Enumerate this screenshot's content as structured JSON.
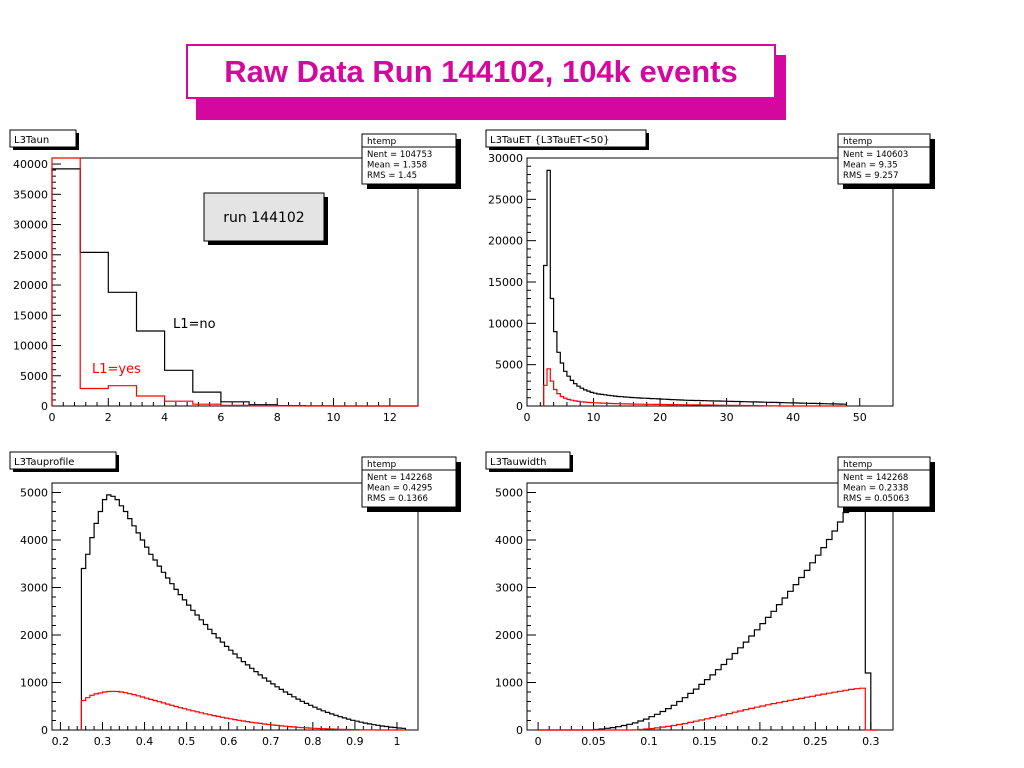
{
  "title": "Raw Data Run 144102, 104k events",
  "colors": {
    "title": "#d4089e",
    "series_no": "#000000",
    "series_yes": "#ff0000"
  },
  "chart_data": [
    {
      "type": "histogram",
      "name": "L3Taun",
      "xlim": [
        0,
        13
      ],
      "ylim": [
        0,
        41000
      ],
      "xticks": [
        0,
        2,
        4,
        6,
        8,
        10,
        12
      ],
      "yticks": [
        0,
        5000,
        10000,
        15000,
        20000,
        25000,
        30000,
        35000,
        40000
      ],
      "stats": {
        "title": "htemp",
        "rows": [
          "Nent = 104753",
          "Mean  = 1.358",
          "RMS   =  1.45"
        ]
      },
      "annotations": [
        {
          "text": "run 144102",
          "boxed": true
        },
        {
          "text": "L1=no",
          "series": "L1=no"
        },
        {
          "text": "L1=yes",
          "series": "L1=yes"
        }
      ],
      "bin_edges": [
        0,
        1,
        2,
        3,
        4,
        5,
        6,
        7,
        8,
        9,
        10,
        11,
        12,
        13
      ],
      "series": [
        {
          "name": "L1=no",
          "color": "#000000",
          "values": [
            39200,
            25400,
            18800,
            12400,
            5900,
            2300,
            700,
            220,
            60,
            20,
            8,
            3,
            1
          ]
        },
        {
          "name": "L1=yes",
          "color": "#ff0000",
          "values": [
            41000,
            2900,
            3350,
            1650,
            800,
            300,
            100,
            30,
            10,
            3,
            1,
            0,
            0
          ]
        }
      ]
    },
    {
      "type": "histogram",
      "name": "L3TauET {L3TauET<50}",
      "xlim": [
        0,
        55
      ],
      "ylim": [
        0,
        30000
      ],
      "xticks": [
        0,
        10,
        20,
        30,
        40,
        50
      ],
      "yticks": [
        0,
        5000,
        10000,
        15000,
        20000,
        25000,
        30000
      ],
      "stats": {
        "title": "htemp",
        "rows": [
          "Nent = 140603",
          "Mean  =   9.35",
          "RMS   =  9.257"
        ]
      },
      "bin_start": 2.5,
      "bin_width": 0.5,
      "series": [
        {
          "name": "L1=no",
          "color": "#000000",
          "values": [
            17000,
            28500,
            13000,
            9000,
            6500,
            5200,
            4200,
            3600,
            3100,
            2700,
            2400,
            2150,
            1950,
            1800,
            1650,
            1550,
            1450,
            1400,
            1350,
            1300,
            1250,
            1200,
            1150,
            1120,
            1090,
            1060,
            1030,
            1000,
            980,
            960,
            940,
            920,
            900,
            880,
            860,
            840,
            820,
            800,
            780,
            760,
            740,
            720,
            700,
            690,
            680,
            670,
            660,
            650,
            640,
            630,
            620,
            610,
            600,
            590,
            580,
            570,
            560,
            550,
            540,
            530,
            520,
            510,
            500,
            490,
            480,
            470,
            460,
            450,
            440,
            430,
            420,
            410,
            400,
            390,
            380,
            370,
            360,
            350,
            340,
            330,
            320,
            310,
            300,
            290,
            280,
            270,
            260,
            250,
            240,
            230,
            220
          ]
        },
        {
          "name": "L1=yes",
          "color": "#ff0000",
          "values": [
            2500,
            4500,
            3000,
            2000,
            1500,
            1150,
            950,
            800,
            700,
            620,
            560,
            510,
            470,
            440,
            410,
            390,
            370,
            350,
            335,
            320,
            305,
            290,
            280,
            270,
            260,
            250,
            240,
            230,
            220,
            215,
            210,
            205,
            200,
            195,
            190,
            185,
            180,
            175,
            170,
            165,
            160,
            155,
            150,
            145,
            140,
            135,
            130,
            125,
            120,
            115,
            110,
            105,
            100,
            95,
            90,
            85,
            80,
            75,
            70,
            65,
            60,
            55,
            50,
            45,
            40,
            35,
            30,
            25,
            20,
            15,
            10,
            5,
            0,
            0,
            0,
            0,
            0,
            0,
            0,
            0,
            0,
            0,
            0,
            0,
            0,
            0,
            0,
            0,
            0,
            0,
            0
          ]
        }
      ]
    },
    {
      "type": "histogram",
      "name": "L3Tauprofile",
      "xlim": [
        0.18,
        1.05
      ],
      "ylim": [
        0,
        5200
      ],
      "xticks": [
        0.2,
        0.3,
        0.4,
        0.5,
        0.6,
        0.7,
        0.8,
        0.9,
        1
      ],
      "yticks": [
        0,
        1000,
        2000,
        3000,
        4000,
        5000
      ],
      "stats": {
        "title": "htemp",
        "rows": [
          "Nent = 142268",
          "Mean  = 0.4295",
          "RMS   = 0.1366"
        ]
      },
      "bin_start": 0.25,
      "bin_width": 0.01,
      "series": [
        {
          "name": "L1=no",
          "color": "#000000",
          "values": [
            3400,
            3700,
            4050,
            4350,
            4600,
            4850,
            4950,
            4920,
            4850,
            4720,
            4600,
            4450,
            4300,
            4150,
            4000,
            3850,
            3700,
            3580,
            3450,
            3320,
            3200,
            3080,
            2960,
            2850,
            2740,
            2630,
            2520,
            2420,
            2320,
            2220,
            2120,
            2030,
            1940,
            1850,
            1760,
            1680,
            1600,
            1520,
            1440,
            1370,
            1300,
            1230,
            1160,
            1095,
            1030,
            970,
            910,
            855,
            800,
            750,
            700,
            650,
            605,
            560,
            520,
            480,
            440,
            405,
            370,
            340,
            310,
            280,
            255,
            230,
            205,
            185,
            165,
            145,
            128,
            112,
            98,
            85,
            73,
            62,
            52,
            43,
            35
          ]
        },
        {
          "name": "L1=yes",
          "color": "#ff0000",
          "values": [
            620,
            680,
            730,
            760,
            780,
            800,
            810,
            815,
            810,
            800,
            785,
            765,
            745,
            720,
            695,
            670,
            645,
            620,
            595,
            570,
            545,
            520,
            495,
            470,
            448,
            426,
            404,
            383,
            362,
            342,
            323,
            304,
            286,
            268,
            251,
            235,
            219,
            204,
            190,
            176,
            163,
            150,
            138,
            127,
            116,
            106,
            96,
            87,
            79,
            71,
            64,
            57,
            51,
            45,
            40,
            35,
            31,
            27,
            23,
            20,
            17,
            14,
            12,
            10,
            8,
            6,
            5,
            4,
            3,
            2,
            1,
            1,
            0,
            0,
            0,
            0,
            0
          ]
        }
      ]
    },
    {
      "type": "histogram",
      "name": "L3Tauwidth",
      "xlim": [
        -0.01,
        0.32
      ],
      "ylim": [
        0,
        5200
      ],
      "xticks": [
        0,
        0.05,
        0.1,
        0.15,
        0.2,
        0.25,
        0.3
      ],
      "yticks": [
        0,
        1000,
        2000,
        3000,
        4000,
        5000
      ],
      "stats": {
        "title": "htemp",
        "rows": [
          "Nent = 142268",
          "Mean  = 0.2338",
          "RMS   = 0.05063"
        ]
      },
      "bin_start": 0,
      "bin_width": 0.005,
      "series": [
        {
          "name": "L1=no",
          "color": "#000000",
          "values": [
            0,
            0,
            0,
            0,
            0,
            0,
            0,
            0,
            0,
            0,
            10,
            20,
            35,
            50,
            70,
            95,
            120,
            150,
            190,
            230,
            280,
            330,
            390,
            450,
            520,
            600,
            680,
            770,
            860,
            960,
            1060,
            1160,
            1270,
            1380,
            1490,
            1610,
            1730,
            1850,
            1980,
            2110,
            2240,
            2370,
            2500,
            2640,
            2780,
            2920,
            3060,
            3210,
            3360,
            3520,
            3680,
            3840,
            4010,
            4190,
            4380,
            4580,
            4780,
            4940,
            5100,
            1200,
            0
          ]
        },
        {
          "name": "L1=yes",
          "color": "#ff0000",
          "values": [
            0,
            0,
            0,
            0,
            0,
            0,
            0,
            0,
            0,
            0,
            0,
            0,
            0,
            0,
            0,
            0,
            0,
            5,
            10,
            20,
            30,
            45,
            60,
            75,
            95,
            115,
            135,
            160,
            185,
            210,
            235,
            260,
            290,
            315,
            345,
            375,
            400,
            430,
            455,
            480,
            505,
            530,
            555,
            575,
            600,
            625,
            645,
            665,
            690,
            710,
            735,
            755,
            775,
            795,
            815,
            835,
            855,
            870,
            880,
            0,
            0
          ]
        }
      ]
    }
  ]
}
